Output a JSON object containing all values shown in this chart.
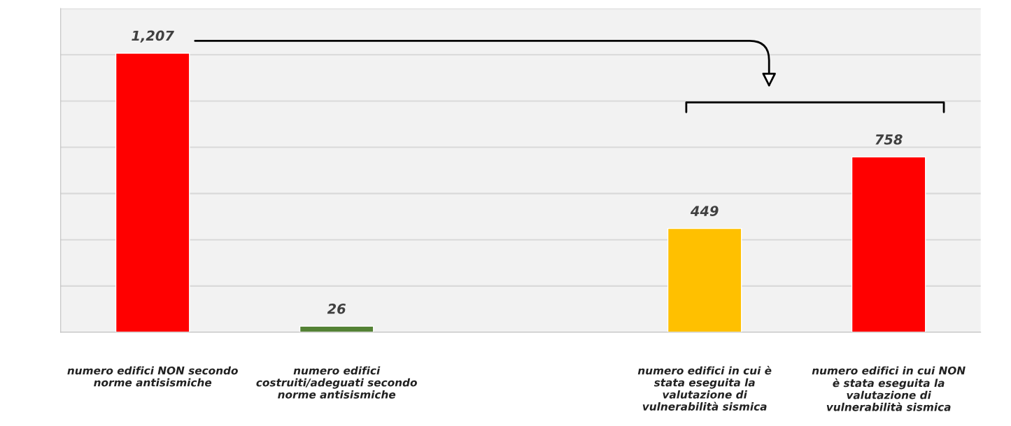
{
  "chart_data": {
    "type": "bar",
    "categories": [
      "numero edifici NON secondo norme antisismiche",
      "numero edifici costruiti/adeguati secondo norme antisismiche",
      null,
      "numero edifici in cui è stata eseguita la valutazione di vulnerabilità sismica",
      "numero edifici in cui NON è stata eseguita la valutazione di vulnerabilità sismica"
    ],
    "values": [
      1207,
      26,
      null,
      449,
      758
    ],
    "colors": [
      "#ff0000",
      "#548235",
      "#ffffff",
      "#ffc000",
      "#ff0000"
    ],
    "value_labels": [
      "1,207",
      "26",
      null,
      "449",
      "758"
    ],
    "ylim": [
      0,
      1400
    ],
    "yticks": [
      {
        "value": 0,
        "label": null
      },
      {
        "value": 200,
        "label": null
      },
      {
        "value": 400,
        "label": null
      },
      {
        "value": 600,
        "label": null
      },
      {
        "value": 800,
        "label": null
      },
      {
        "value": 1000,
        "label": null
      },
      {
        "value": 1200,
        "label": null
      },
      {
        "value": 1400,
        "label": null
      }
    ],
    "tick_labels": "x",
    "grid": "y"
  }
}
